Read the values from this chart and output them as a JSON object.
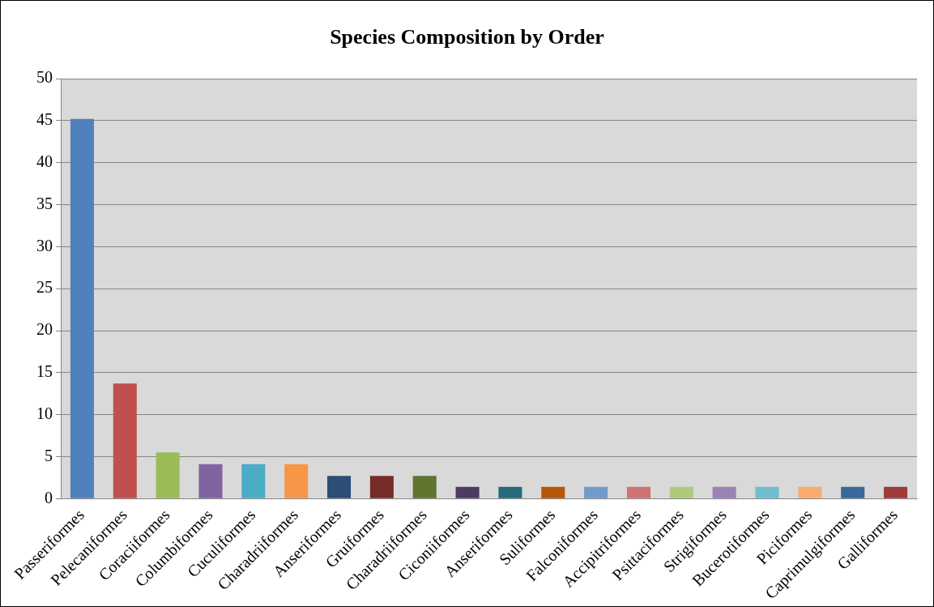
{
  "chart_data": {
    "type": "bar",
    "title": "Species Composition by Order",
    "categories": [
      "Passeriformes",
      "Pelecaniformes",
      "Coraciiformes",
      "Columbiformes",
      "Cuculiformes",
      "Charadriiformes",
      "Anseriformes",
      "Gruiformes",
      "Charadriiformes",
      "Ciconiiformes",
      "Anseriformes",
      "Suliformes",
      "Falconiformes",
      "Accipitriformes",
      "Psittaciformes",
      "Strigiformes",
      "Bucerotiformes",
      "Piciformes",
      "Caprimulgiformes",
      "Galliformes"
    ],
    "values": [
      45.2,
      13.7,
      5.5,
      4.1,
      4.1,
      4.1,
      2.7,
      2.7,
      2.7,
      1.4,
      1.4,
      1.4,
      1.4,
      1.4,
      1.4,
      1.4,
      1.4,
      1.4,
      1.4,
      1.4
    ],
    "colors": [
      "#4f81bd",
      "#c0504d",
      "#9bbb59",
      "#8064a2",
      "#4bacc6",
      "#f79646",
      "#2c4d75",
      "#772c2a",
      "#5f7530",
      "#4d3b62",
      "#276a7c",
      "#b65708",
      "#729aca",
      "#cd7371",
      "#afc97a",
      "#9983b5",
      "#6fbdd1",
      "#f9ab6b",
      "#3a679c",
      "#9f3b38"
    ],
    "ylim": [
      0,
      50
    ],
    "yticks": [
      0,
      5,
      10,
      15,
      20,
      25,
      30,
      35,
      40,
      45,
      50
    ],
    "grid": "y",
    "legend": false
  }
}
